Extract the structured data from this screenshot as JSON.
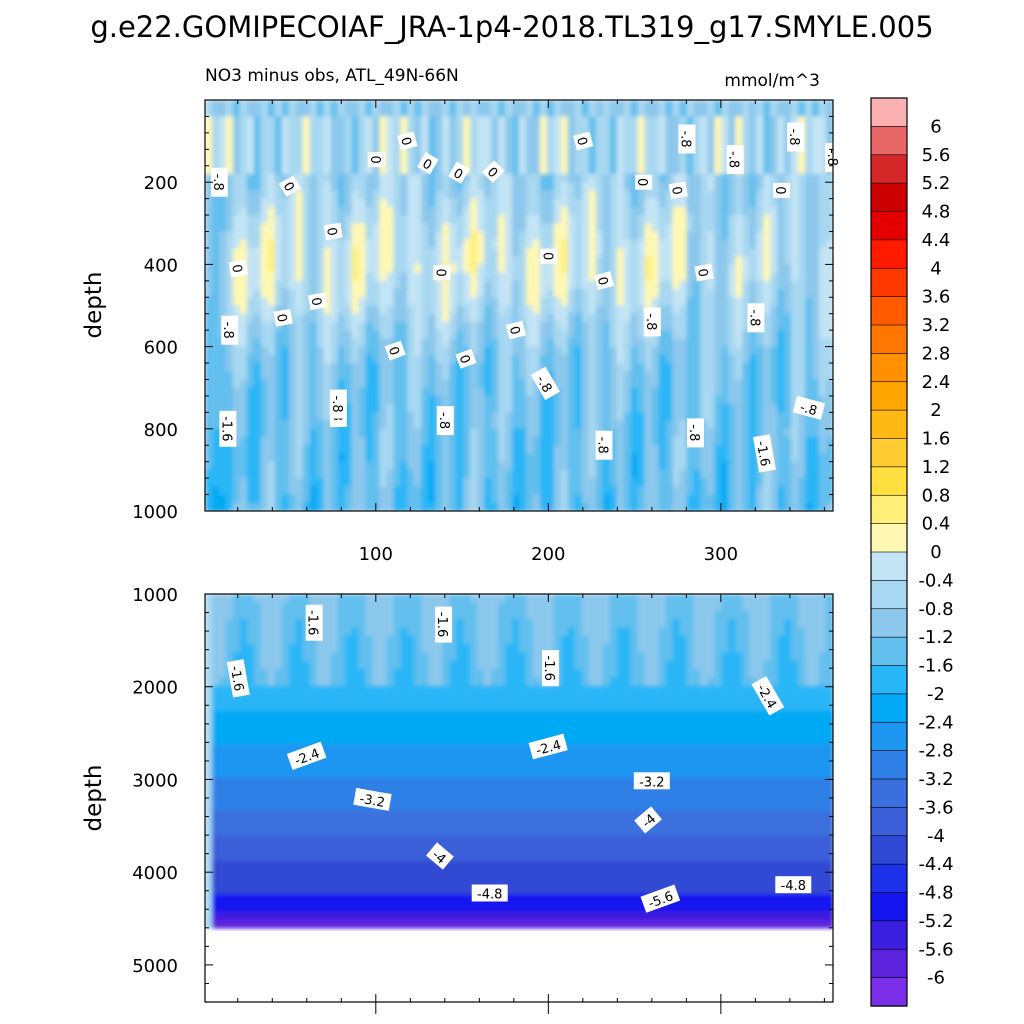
{
  "figure": {
    "title": "g.e22.GOMIPECOIAF_JRA-1p4-2018.TL319_g17.SMYLE.005"
  },
  "chart_data": {
    "type": "heatmap",
    "subtitle_left": "NO3 minus obs, ATL_49N-66N",
    "subtitle_right": "mmol/m^3",
    "x_range": [
      1,
      365
    ],
    "x_ticks": [
      "100",
      "200",
      "300"
    ],
    "x_tick_values": [
      100,
      200,
      300
    ],
    "panels": [
      {
        "name": "upper",
        "ylabel": "depth",
        "ylim": [
          1000,
          0
        ],
        "y_ticks": [
          "200",
          "400",
          "600",
          "800",
          "1000"
        ],
        "y_tick_values": [
          200,
          400,
          600,
          800,
          1000
        ],
        "contour_labels": [
          {
            "text": "0",
            "x": 118,
            "y": 100,
            "rot": 75
          },
          {
            "text": "0",
            "x": 100,
            "y": 145,
            "rot": 90
          },
          {
            "text": "0",
            "x": 220,
            "y": 100,
            "rot": 75
          },
          {
            "text": "-.8",
            "x": 280,
            "y": 95,
            "rot": 90
          },
          {
            "text": "-.8",
            "x": 343,
            "y": 90,
            "rot": 90
          },
          {
            "text": "-.8",
            "x": 365,
            "y": 140,
            "rot": 90
          },
          {
            "text": "-.8",
            "x": 308,
            "y": 145,
            "rot": 90
          },
          {
            "text": "0",
            "x": 50,
            "y": 210,
            "rot": 60
          },
          {
            "text": "0",
            "x": 130,
            "y": 155,
            "rot": 30
          },
          {
            "text": "0",
            "x": 148,
            "y": 178,
            "rot": 30
          },
          {
            "text": "0",
            "x": 168,
            "y": 175,
            "rot": 45
          },
          {
            "text": "0",
            "x": 255,
            "y": 200,
            "rot": 90
          },
          {
            "text": "0",
            "x": 275,
            "y": 220,
            "rot": 80
          },
          {
            "text": "0",
            "x": 335,
            "y": 220,
            "rot": 90
          },
          {
            "text": "-.8",
            "x": 9,
            "y": 200,
            "rot": 90
          },
          {
            "text": "0",
            "x": 75,
            "y": 320,
            "rot": 80
          },
          {
            "text": "0",
            "x": 20,
            "y": 410,
            "rot": 80
          },
          {
            "text": "0",
            "x": 138,
            "y": 420,
            "rot": 90
          },
          {
            "text": "0",
            "x": 200,
            "y": 380,
            "rot": 90
          },
          {
            "text": "0",
            "x": 232,
            "y": 440,
            "rot": 75
          },
          {
            "text": "0",
            "x": 290,
            "y": 420,
            "rot": 80
          },
          {
            "text": "0",
            "x": 66,
            "y": 490,
            "rot": 80
          },
          {
            "text": "0",
            "x": 46,
            "y": 530,
            "rot": 80
          },
          {
            "text": "0",
            "x": 181,
            "y": 560,
            "rot": 75
          },
          {
            "text": "0",
            "x": 111,
            "y": 610,
            "rot": 70
          },
          {
            "text": "0",
            "x": 152,
            "y": 630,
            "rot": 70
          },
          {
            "text": "-.8",
            "x": 15,
            "y": 560,
            "rot": 90
          },
          {
            "text": "-.8",
            "x": 260,
            "y": 540,
            "rot": 90
          },
          {
            "text": "-.8",
            "x": 320,
            "y": 530,
            "rot": 90
          },
          {
            "text": "-.8",
            "x": 198,
            "y": 690,
            "rot": 60
          },
          {
            "text": "-.8",
            "x": 78,
            "y": 760,
            "rot": 90
          },
          {
            "text": "-.8",
            "x": 78,
            "y": 740,
            "rot": 90
          },
          {
            "text": "-.8",
            "x": 140,
            "y": 780,
            "rot": 90
          },
          {
            "text": "-1.6",
            "x": 14,
            "y": 800,
            "rot": 90
          },
          {
            "text": "-.8",
            "x": 232,
            "y": 840,
            "rot": 90
          },
          {
            "text": "-.8",
            "x": 285,
            "y": 810,
            "rot": 90
          },
          {
            "text": "-1.6",
            "x": 325,
            "y": 860,
            "rot": 80
          },
          {
            "text": "-.8",
            "x": 351,
            "y": 750,
            "rot": 15
          }
        ]
      },
      {
        "name": "lower",
        "ylabel": "depth",
        "ylim": [
          5400,
          1000
        ],
        "data_bottom_depth": 4600,
        "y_ticks": [
          "1000",
          "2000",
          "3000",
          "4000",
          "5000"
        ],
        "y_tick_values": [
          1000,
          2000,
          3000,
          4000,
          5000
        ],
        "contour_labels": [
          {
            "text": "-1.6",
            "x": 64,
            "y": 1310,
            "rot": 90
          },
          {
            "text": "-1.6",
            "x": 139,
            "y": 1330,
            "rot": 90
          },
          {
            "text": "-1.6",
            "x": 20,
            "y": 1910,
            "rot": 80
          },
          {
            "text": "-1.6",
            "x": 201,
            "y": 1800,
            "rot": 90
          },
          {
            "text": "-2.4",
            "x": 327,
            "y": 2100,
            "rot": 60
          },
          {
            "text": "-2.4",
            "x": 60,
            "y": 2750,
            "rot": -20
          },
          {
            "text": "-2.4",
            "x": 200,
            "y": 2650,
            "rot": -15
          },
          {
            "text": "-3.2",
            "x": 98,
            "y": 3220,
            "rot": 10
          },
          {
            "text": "-3.2",
            "x": 260,
            "y": 3020,
            "rot": 0
          },
          {
            "text": "-4",
            "x": 137,
            "y": 3830,
            "rot": 40
          },
          {
            "text": "-4",
            "x": 258,
            "y": 3440,
            "rot": -40
          },
          {
            "text": "-4.8",
            "x": 166,
            "y": 4230,
            "rot": 0
          },
          {
            "text": "-5.6",
            "x": 265,
            "y": 4290,
            "rot": -20
          },
          {
            "text": "-4.8",
            "x": 342,
            "y": 4140,
            "rot": 0
          }
        ]
      }
    ],
    "colorbar": {
      "levels": [
        "6",
        "5.6",
        "5.2",
        "4.8",
        "4.4",
        "4",
        "3.6",
        "3.2",
        "2.8",
        "2.4",
        "2",
        "1.6",
        "1.2",
        "0.8",
        "0.4",
        "0",
        "-0.4",
        "-0.8",
        "-1.2",
        "-1.6",
        "-2",
        "-2.4",
        "-2.8",
        "-3.2",
        "-3.6",
        "-4",
        "-4.4",
        "-4.8",
        "-5.2",
        "-5.6",
        "-6"
      ],
      "colors": [
        "#fbb1b1",
        "#e86868",
        "#d42828",
        "#cc0000",
        "#e40000",
        "#ff1a00",
        "#ff3a00",
        "#ff5a00",
        "#ff7700",
        "#ff9100",
        "#ffa500",
        "#ffb914",
        "#ffcc33",
        "#ffe040",
        "#fff07a",
        "#fff8b3",
        "#c3e4f4",
        "#a8d8f1",
        "#8cc8ec",
        "#62bfee",
        "#29b6f6",
        "#03a9f4",
        "#1f96f0",
        "#2f7fe6",
        "#3b6fdd",
        "#3b5fd8",
        "#3048d4",
        "#1d31e8",
        "#1515f0",
        "#3a1ddf",
        "#5b23dc",
        "#7b2fe8"
      ]
    }
  }
}
